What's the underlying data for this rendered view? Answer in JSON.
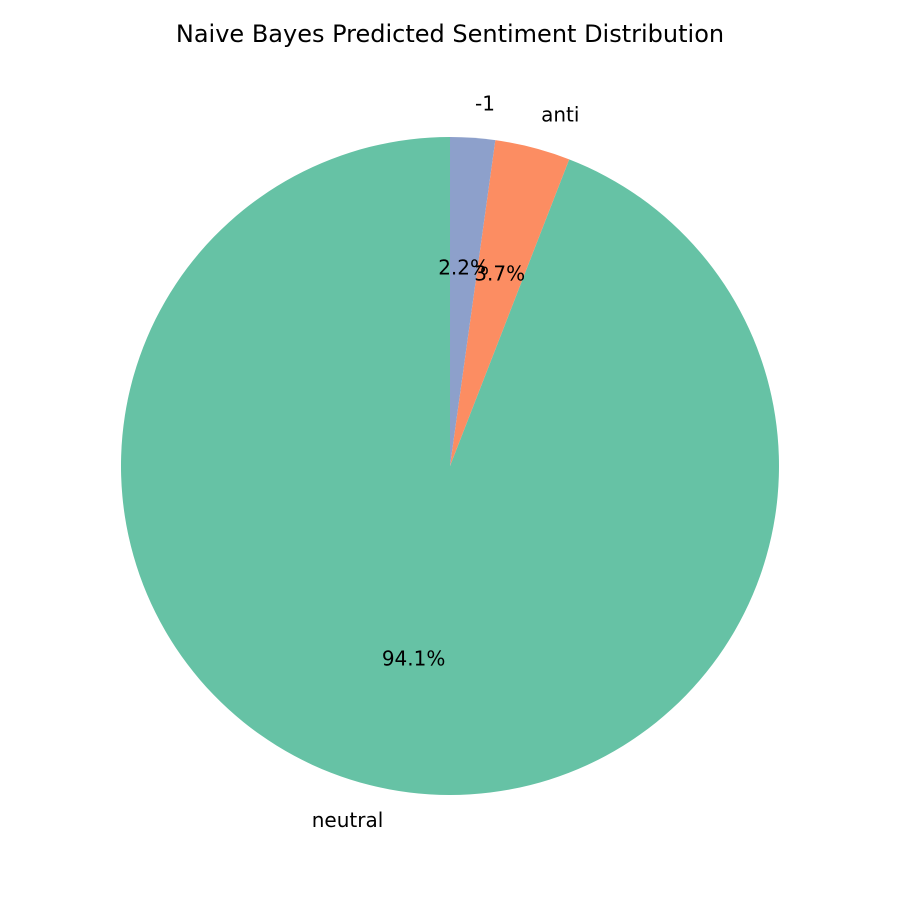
{
  "chart_data": {
    "type": "pie",
    "title": "Naive Bayes Predicted Sentiment Distribution",
    "start_angle_deg": 90,
    "direction": "counterclockwise",
    "slices": [
      {
        "label": "neutral",
        "percent": 94.1,
        "percent_label": "94.1%",
        "color": "#66c2a5"
      },
      {
        "label": "anti",
        "percent": 3.7,
        "percent_label": "3.7%",
        "color": "#fc8d62"
      },
      {
        "label": "-1",
        "percent": 2.2,
        "percent_label": "2.2%",
        "color": "#8da0cb"
      }
    ]
  }
}
